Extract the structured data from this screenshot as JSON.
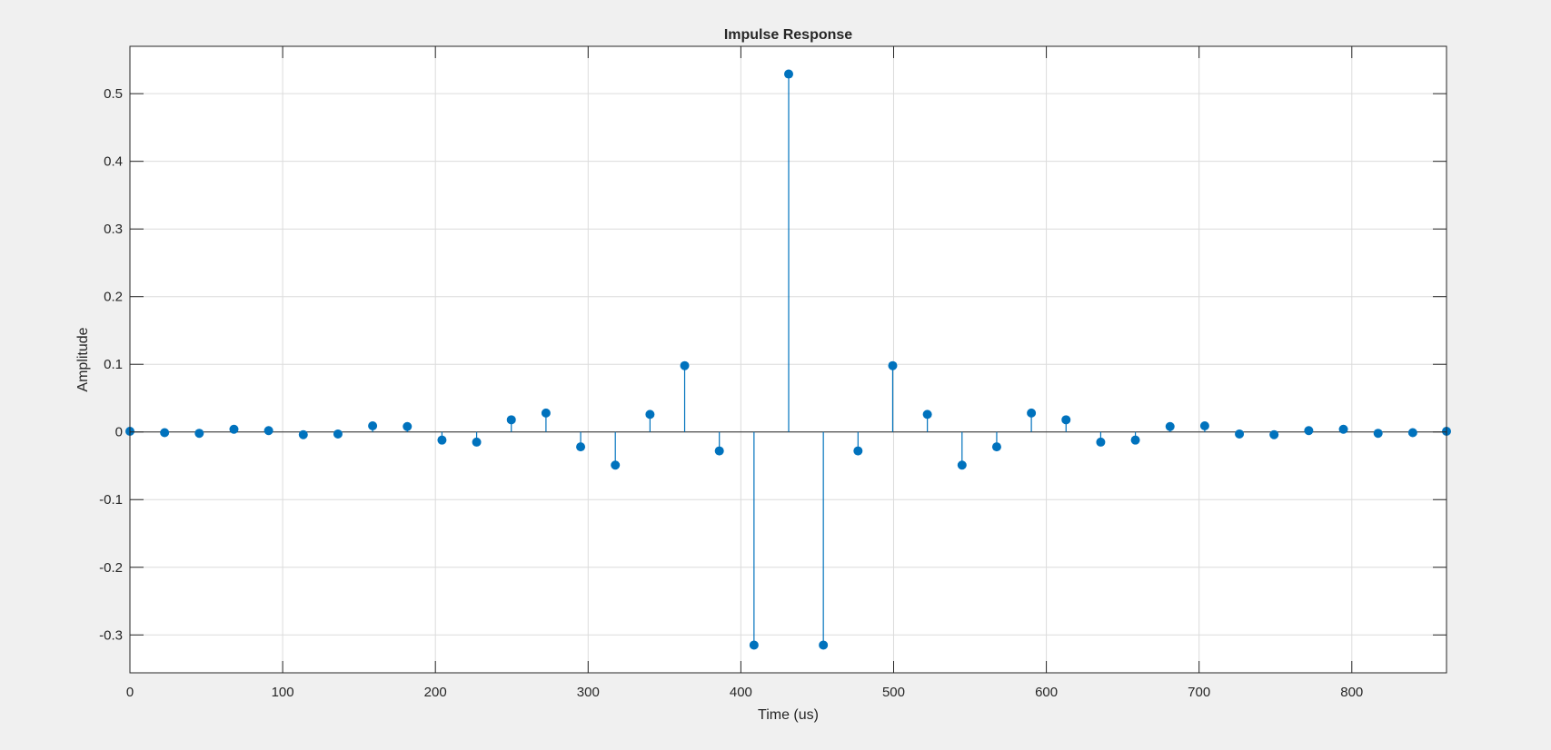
{
  "window": {
    "background": "#f0f0f0"
  },
  "chart_data": {
    "type": "stem",
    "title": "Impulse Response",
    "xlabel": "Time (us)",
    "ylabel": "Amplitude",
    "xlim": [
      0,
      862
    ],
    "ylim": [
      -0.356,
      0.57
    ],
    "xticks": [
      0,
      100,
      200,
      300,
      400,
      500,
      600,
      700,
      800
    ],
    "yticks": [
      -0.3,
      -0.2,
      -0.1,
      0,
      0.1,
      0.2,
      0.3,
      0.4,
      0.5
    ],
    "xtick_labels": [
      "0",
      "100",
      "200",
      "300",
      "400",
      "500",
      "600",
      "700",
      "800"
    ],
    "ytick_labels": [
      "-0.3",
      "-0.2",
      "-0.1",
      "0",
      "0.1",
      "0.2",
      "0.3",
      "0.4",
      "0.5"
    ],
    "grid": true,
    "colors": {
      "stem": "#0072BD",
      "grid": "#dcdcdc",
      "axes": "#262626",
      "plot_bg": "#ffffff"
    },
    "series": [
      {
        "x": [
          0,
          22.7,
          45.4,
          68.1,
          90.8,
          113.5,
          136.2,
          158.9,
          181.6,
          204.3,
          227,
          249.7,
          272.4,
          295.1,
          317.8,
          340.5,
          363.2,
          385.9,
          408.6,
          431.3,
          454,
          476.7,
          499.4,
          522.1,
          544.8,
          567.5,
          590.2,
          612.9,
          635.6,
          658.3,
          681,
          703.7,
          726.4,
          749.1,
          771.8,
          794.5,
          817.2,
          839.9,
          862
        ],
        "values": [
          0.001,
          -0.001,
          -0.002,
          0.004,
          0.002,
          -0.004,
          -0.003,
          0.009,
          0.008,
          -0.012,
          -0.015,
          0.018,
          0.028,
          -0.022,
          -0.049,
          0.026,
          0.098,
          -0.028,
          -0.315,
          0.529,
          -0.315,
          -0.028,
          0.098,
          0.026,
          -0.049,
          -0.022,
          0.028,
          0.018,
          -0.015,
          -0.012,
          0.008,
          0.009,
          -0.003,
          -0.004,
          0.002,
          0.004,
          -0.002,
          -0.001,
          0.001
        ]
      }
    ]
  }
}
